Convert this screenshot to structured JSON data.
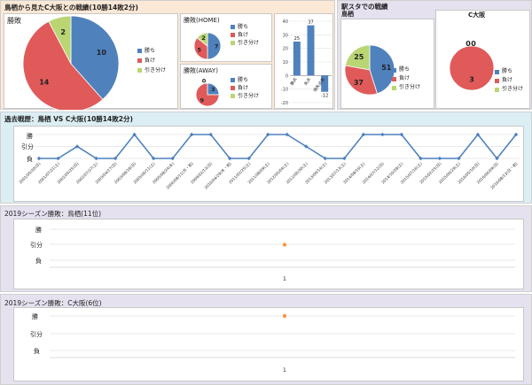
{
  "colors": {
    "win": "#4f81bd",
    "loss": "#e05a5a",
    "draw": "#bad573",
    "line": "#4f81bd",
    "dot": "#f79646",
    "orange_bg": "#fce8d6",
    "blue_bg": "#dbeef4",
    "purple_bg": "#e5e1ee"
  },
  "top": {
    "title": "鳥栖から見たC大阪との戦績(10勝14敗2分)",
    "overall_title": "勝敗",
    "home_title": "勝敗(HOME)",
    "away_title": "勝敗(AWAY)",
    "legend": [
      "勝ち",
      "負け",
      "引き分け"
    ]
  },
  "station": {
    "title": "駅スタでの戦績",
    "left_title": "鳥栖",
    "right_title": "C大阪",
    "legend": [
      "勝ち",
      "負け",
      "引き分け"
    ]
  },
  "history": {
    "title": "過去戦歴：鳥栖 VS C大阪(10勝14敗2分)",
    "ylabels": [
      "勝",
      "引分",
      "負"
    ]
  },
  "season1": {
    "title": "2019シーズン勝敗：鳥栖(11位)",
    "ylabels": [
      "勝",
      "引分",
      "負"
    ],
    "xlabel": "1"
  },
  "season2": {
    "title": "2019シーズン勝敗：C大阪(6位)",
    "ylabels": [
      "勝",
      "引分",
      "負"
    ],
    "xlabel": "1"
  },
  "chart_data": [
    {
      "type": "pie",
      "title": "勝敗",
      "categories": [
        "勝ち",
        "負け",
        "引き分け"
      ],
      "values": [
        10,
        14,
        2
      ]
    },
    {
      "type": "pie",
      "title": "勝敗(HOME)",
      "categories": [
        "勝ち",
        "負け",
        "引き分け"
      ],
      "values": [
        7,
        5,
        2
      ]
    },
    {
      "type": "pie",
      "title": "勝敗(AWAY)",
      "categories": [
        "勝ち",
        "負け",
        "引き分け"
      ],
      "values": [
        3,
        9,
        0
      ]
    },
    {
      "type": "bar",
      "categories": [
        "勝点",
        "失点",
        "得失点差"
      ],
      "values": [
        25,
        37,
        -12
      ],
      "ylim": [
        -20,
        40
      ],
      "yticks": [
        40,
        30,
        20,
        10,
        0,
        -10,
        -20
      ]
    },
    {
      "type": "pie",
      "title": "鳥栖",
      "categories": [
        "勝ち",
        "負け",
        "引き分け"
      ],
      "values": [
        51,
        37,
        25
      ]
    },
    {
      "type": "pie",
      "title": "C大阪",
      "categories": [
        "勝ち",
        "負け",
        "引き分け"
      ],
      "values": [
        0,
        3,
        0
      ]
    },
    {
      "type": "line",
      "title": "過去戦歴：鳥栖 VS C大阪(10勝14敗2分)",
      "x": [
        "2001/05/20(日)",
        "2001/07/21(土)",
        "2002/05/25(日)",
        "2002/07/27(土)",
        "2003/04/27(日)",
        "2003/08/18(日)",
        "2005/06/11(土)",
        "2005/08/24(水)",
        "2006/08/11(月・祝)",
        "2009/02/13(日)",
        "2010/04/29(木・祝)",
        "2011/02/25(土)",
        "2011/08/09(土)",
        "2012/05/04(土)",
        "2012/06/30(土)",
        "2013/09/14(土)",
        "2013/07/13(土)",
        "2014/08/16(土)",
        "2014/07/12(日)",
        "2014/10/28(土)",
        "2015/07/16(土)",
        "2015/02/25(日)",
        "2015/06/29(土)",
        "2016/05/10(日)",
        "2016/06/09(日)",
        "2016/08/13(日・祝)"
      ],
      "values": [
        0,
        0,
        0.5,
        0,
        0,
        1,
        0,
        0,
        1,
        1,
        0,
        0,
        1,
        1,
        0.5,
        0,
        0,
        1,
        1,
        1,
        0,
        0,
        0,
        1,
        0,
        1
      ]
    },
    {
      "type": "scatter",
      "title": "2019シーズン勝敗：鳥栖(11位)",
      "x": [
        1
      ],
      "values": [
        0.5
      ]
    },
    {
      "type": "scatter",
      "title": "2019シーズン勝敗：C大阪(6位)",
      "x": [
        1
      ],
      "values": [
        1
      ]
    }
  ]
}
